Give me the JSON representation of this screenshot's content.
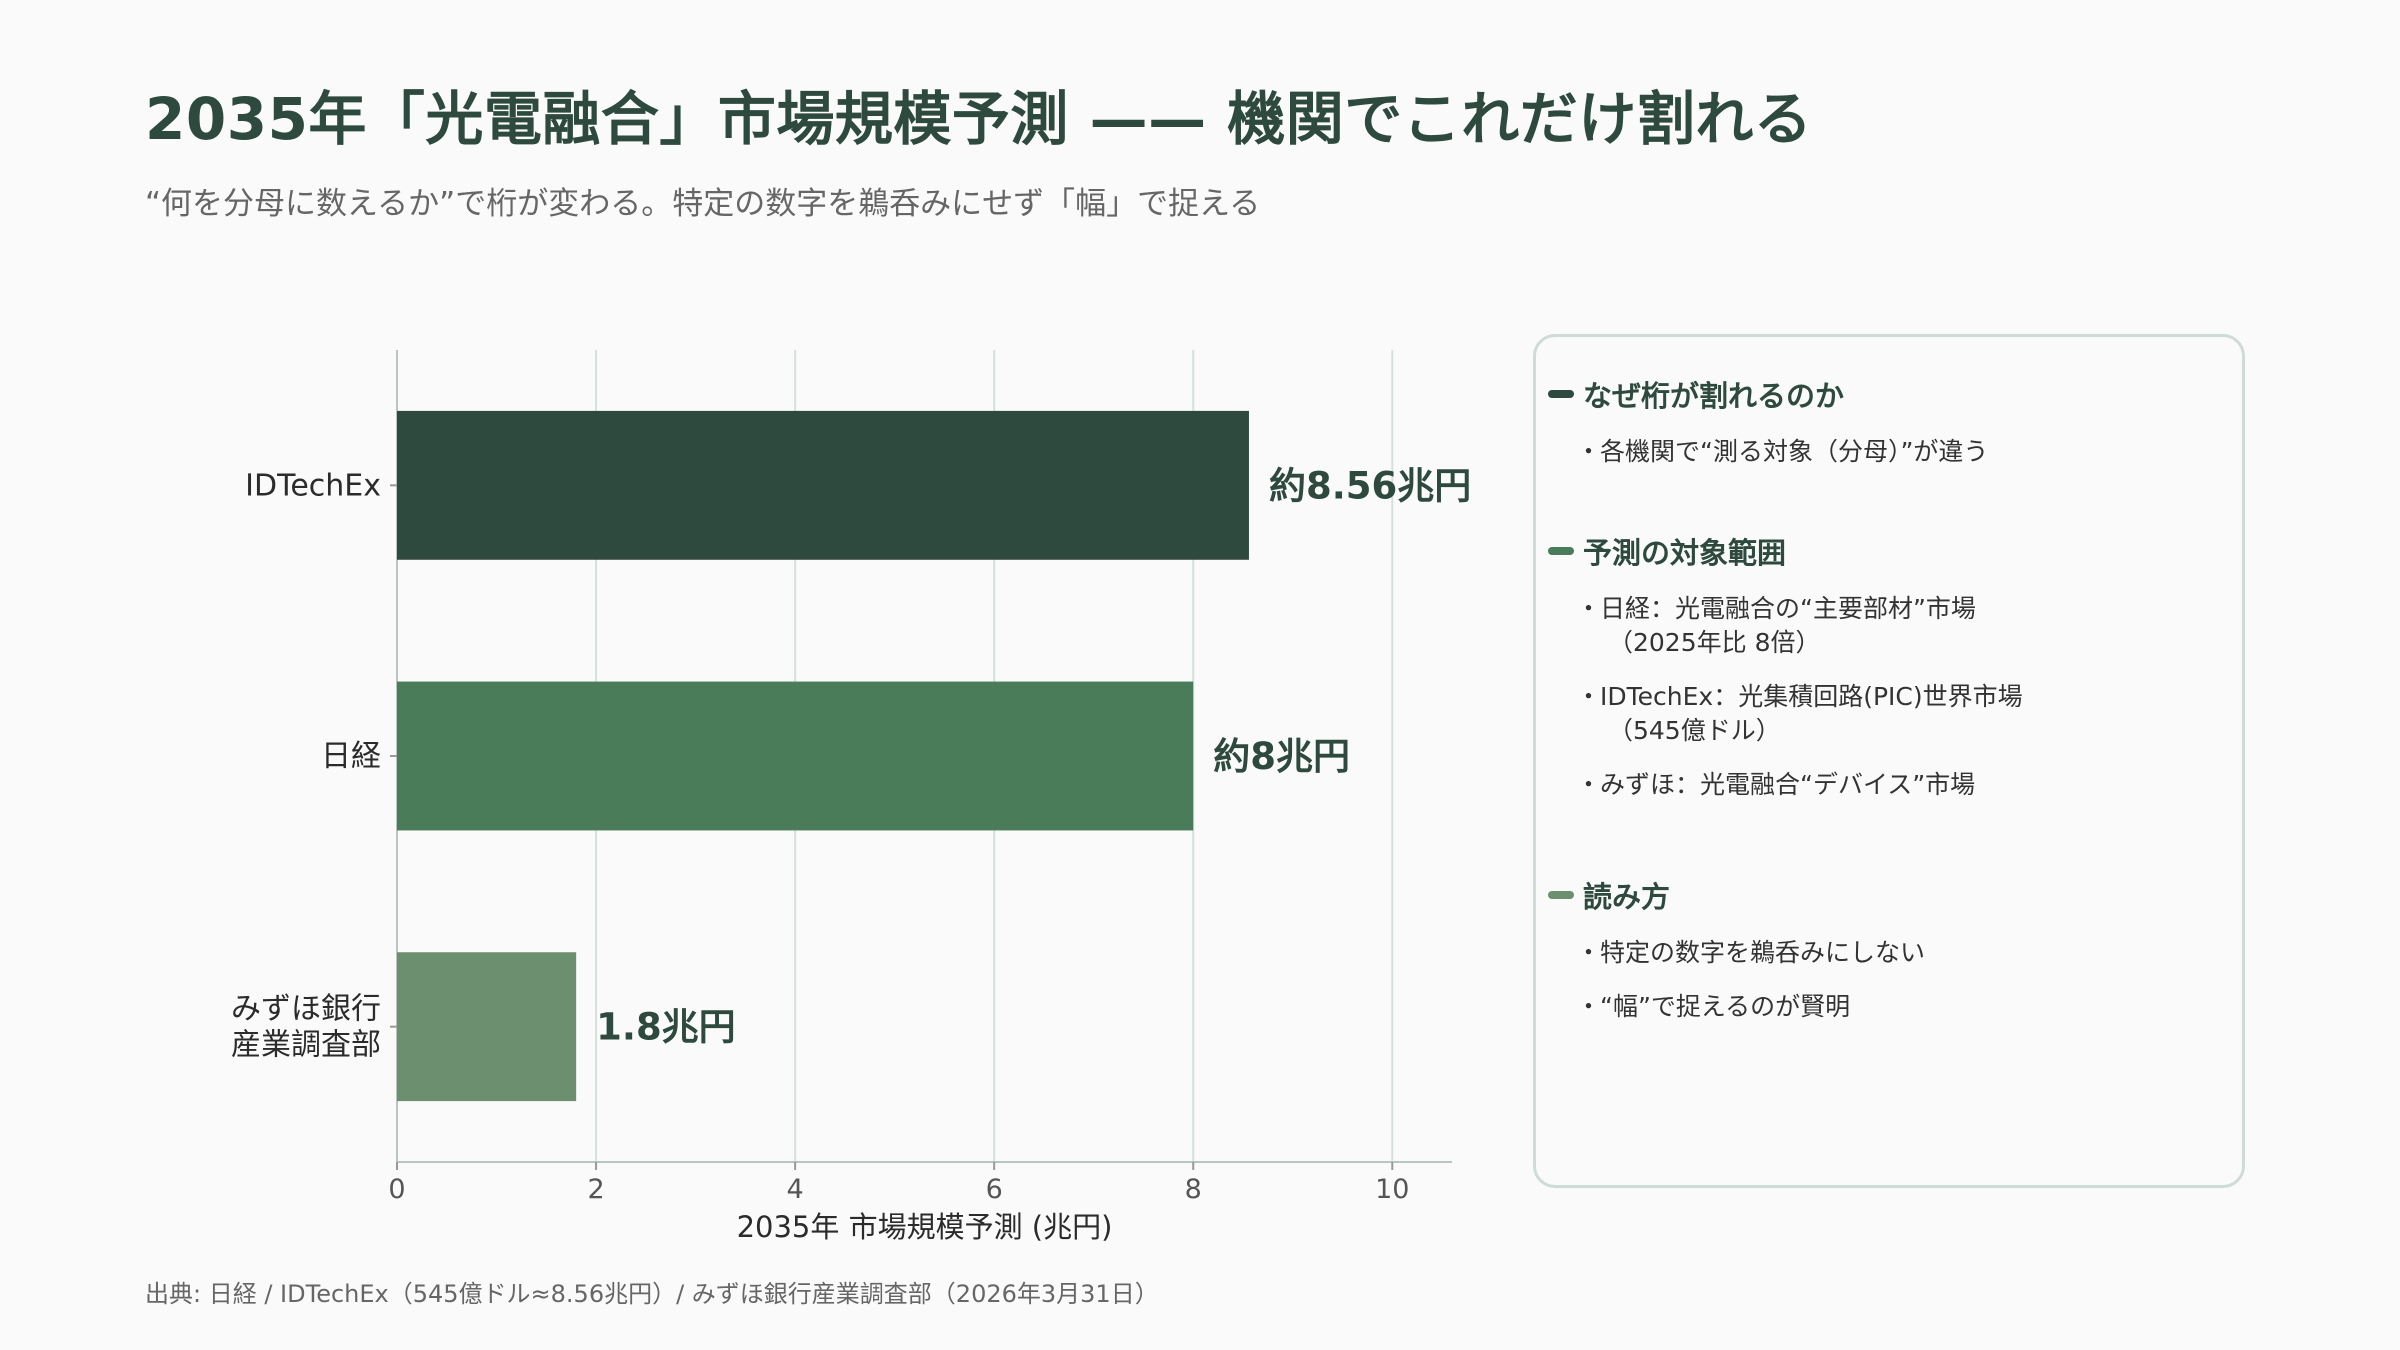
{
  "header": {
    "title": "2035年「光電融合」市場規模予測 —— 機関でこれだけ割れる",
    "subtitle": "“何を分母に数えるか”で桁が変わる。特定の数字を鵜呑みにせず「幅」で捉える"
  },
  "chart_data": {
    "type": "bar",
    "orientation": "horizontal",
    "categories": [
      "IDTechEx",
      "日経",
      "みずほ銀行\n産業調査部"
    ],
    "category_lines": [
      [
        "IDTechEx"
      ],
      [
        "日経"
      ],
      [
        "みずほ銀行",
        "産業調査部"
      ]
    ],
    "values": [
      8.56,
      8.0,
      1.8
    ],
    "value_labels": [
      "約8.56兆円",
      "約8兆円",
      "1.8兆円"
    ],
    "bar_colors": [
      "#2e4a3e",
      "#4b7c5a",
      "#6b8f6f"
    ],
    "xlabel": "2035年 市場規模予測 (兆円)",
    "ylabel": "",
    "xlim": [
      0,
      10.6
    ],
    "xticks": [
      0,
      2,
      4,
      6,
      8,
      10
    ],
    "grid": "vertical"
  },
  "panel": {
    "sections": [
      {
        "heading": "なぜ桁が割れるのか",
        "marker_color": "#2e4a3e",
        "items": [
          {
            "line1": "各機関で“測る対象（分母）”が違う",
            "line2": ""
          }
        ]
      },
      {
        "heading": "予測の対象範囲",
        "marker_color": "#4b7c5a",
        "items": [
          {
            "line1": "日経：光電融合の“主要部材”市場",
            "line2": "（2025年比 8倍）"
          },
          {
            "line1": "IDTechEx：光集積回路(PIC)世界市場",
            "line2": "（545億ドル）"
          },
          {
            "line1": "みずほ：光電融合“デバイス”市場",
            "line2": ""
          }
        ]
      },
      {
        "heading": "読み方",
        "marker_color": "#6b8f6f",
        "items": [
          {
            "line1": "特定の数字を鵜呑みにしない",
            "line2": ""
          },
          {
            "line1": "“幅”で捉えるのが賢明",
            "line2": ""
          }
        ]
      }
    ]
  },
  "footer": {
    "source": "出典: 日経 / IDTechEx（545億ドル≈8.56兆円）/ みずほ銀行産業調査部（2026年3月31日）"
  }
}
